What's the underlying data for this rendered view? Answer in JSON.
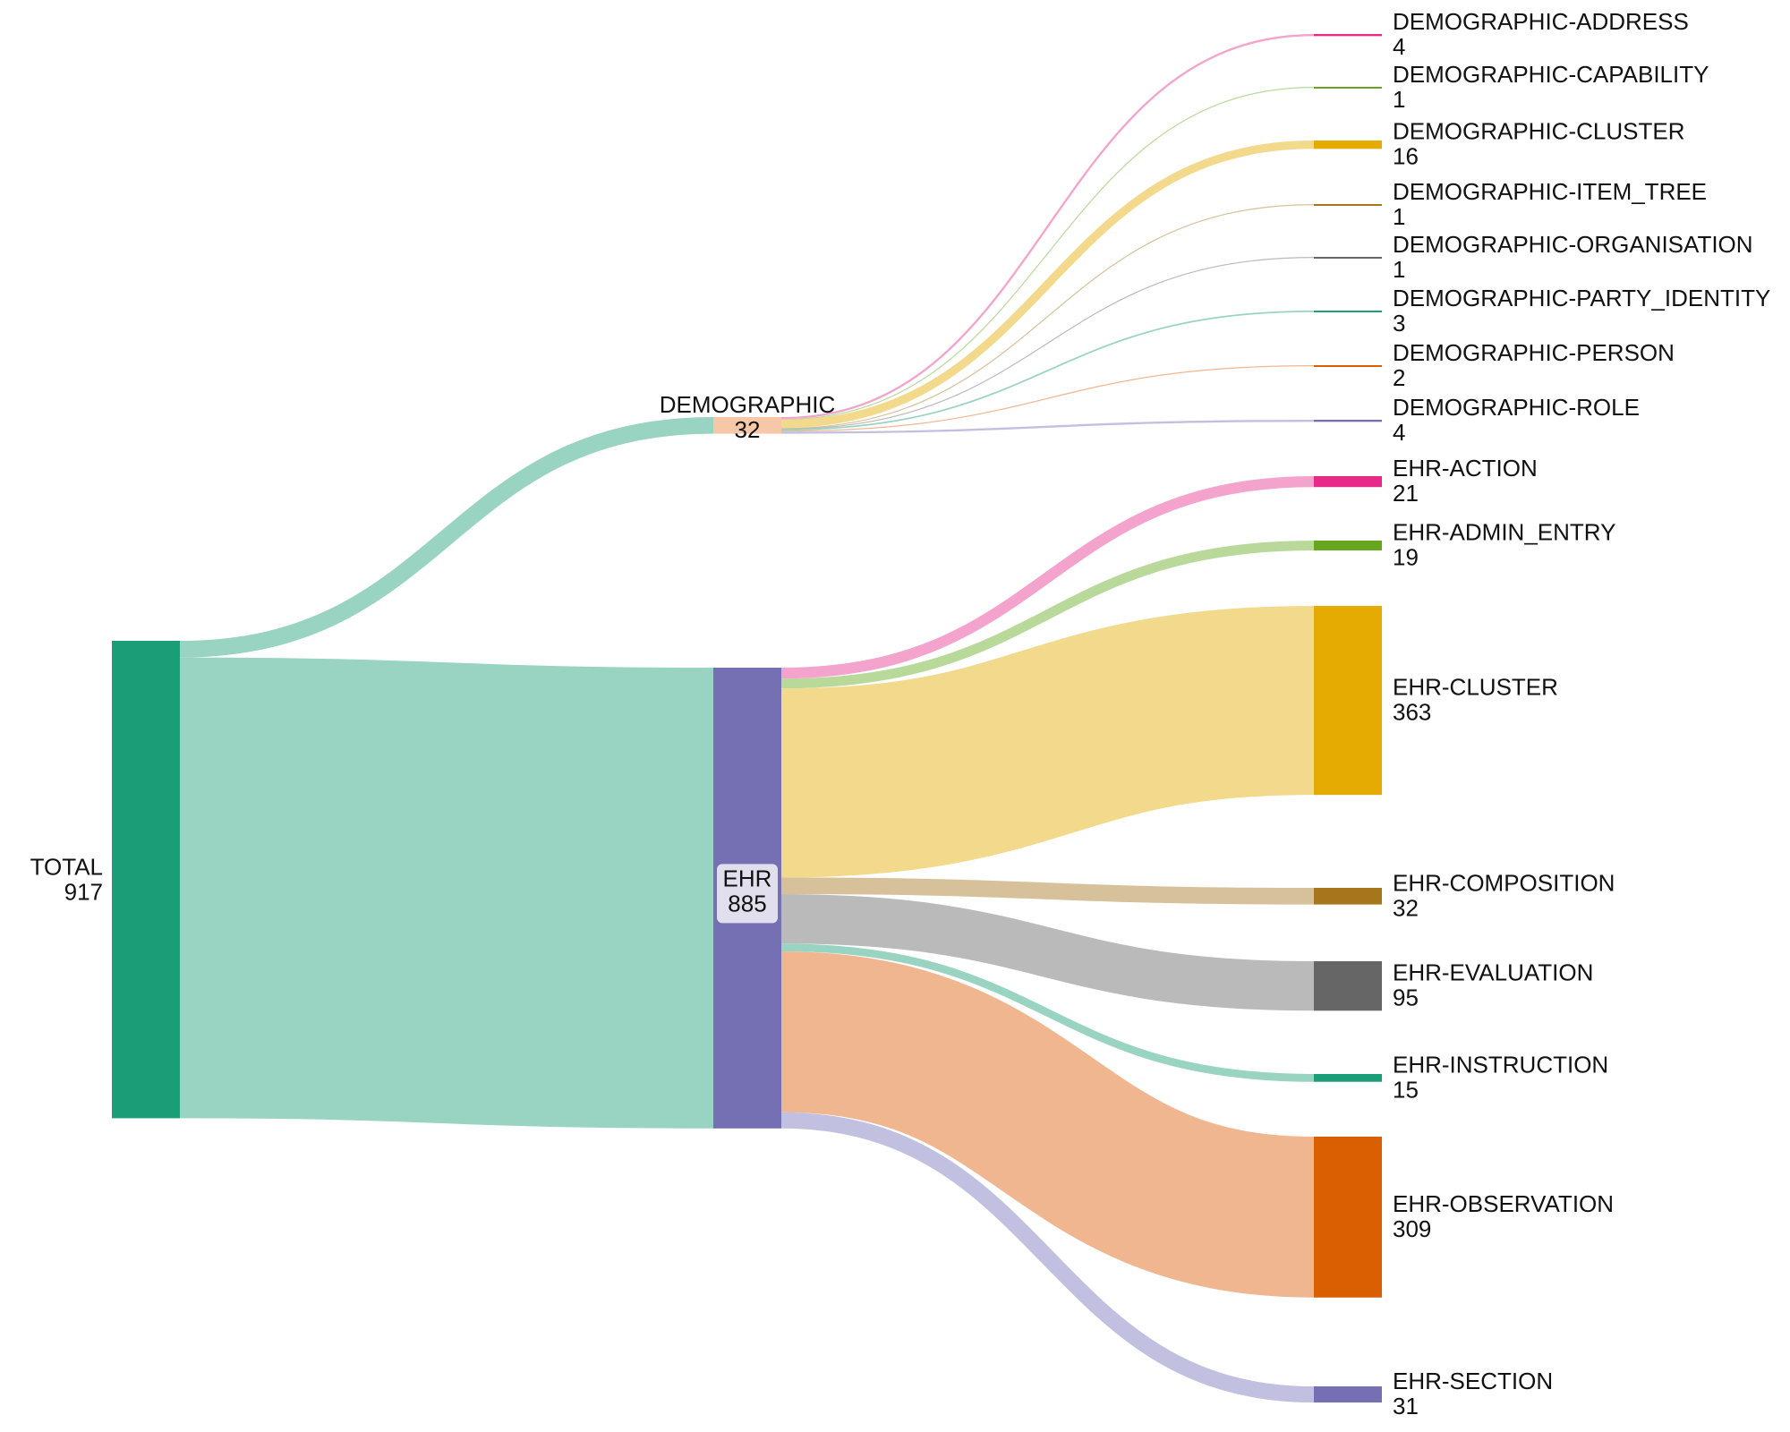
{
  "chart_data": {
    "type": "sankey",
    "nodes": [
      {
        "id": "total",
        "name": "TOTAL",
        "value": 917,
        "color": "#1b9e77"
      },
      {
        "id": "demographic",
        "name": "DEMOGRAPHIC",
        "value": 32,
        "color": "#f7c8a8"
      },
      {
        "id": "ehr",
        "name": "EHR",
        "value": 885,
        "color": "#7570b3"
      },
      {
        "id": "demo-address",
        "name": "DEMOGRAPHIC-ADDRESS",
        "value": 4,
        "color": "#e7298a"
      },
      {
        "id": "demo-capability",
        "name": "DEMOGRAPHIC-CAPABILITY",
        "value": 1,
        "color": "#66a61e"
      },
      {
        "id": "demo-cluster",
        "name": "DEMOGRAPHIC-CLUSTER",
        "value": 16,
        "color": "#e6ab02"
      },
      {
        "id": "demo-item-tree",
        "name": "DEMOGRAPHIC-ITEM_TREE",
        "value": 1,
        "color": "#a6761d"
      },
      {
        "id": "demo-organisation",
        "name": "DEMOGRAPHIC-ORGANISATION",
        "value": 1,
        "color": "#666666"
      },
      {
        "id": "demo-party-identity",
        "name": "DEMOGRAPHIC-PARTY_IDENTITY",
        "value": 3,
        "color": "#1b9e77"
      },
      {
        "id": "demo-person",
        "name": "DEMOGRAPHIC-PERSON",
        "value": 2,
        "color": "#d95f02"
      },
      {
        "id": "demo-role",
        "name": "DEMOGRAPHIC-ROLE",
        "value": 4,
        "color": "#7570b3"
      },
      {
        "id": "ehr-action",
        "name": "EHR-ACTION",
        "value": 21,
        "color": "#e7298a"
      },
      {
        "id": "ehr-admin-entry",
        "name": "EHR-ADMIN_ENTRY",
        "value": 19,
        "color": "#66a61e"
      },
      {
        "id": "ehr-cluster",
        "name": "EHR-CLUSTER",
        "value": 363,
        "color": "#e6ab02"
      },
      {
        "id": "ehr-composition",
        "name": "EHR-COMPOSITION",
        "value": 32,
        "color": "#a6761d"
      },
      {
        "id": "ehr-evaluation",
        "name": "EHR-EVALUATION",
        "value": 95,
        "color": "#666666"
      },
      {
        "id": "ehr-instruction",
        "name": "EHR-INSTRUCTION",
        "value": 15,
        "color": "#1b9e77"
      },
      {
        "id": "ehr-observation",
        "name": "EHR-OBSERVATION",
        "value": 309,
        "color": "#d95f02"
      },
      {
        "id": "ehr-section",
        "name": "EHR-SECTION",
        "value": 31,
        "color": "#7570b3"
      }
    ],
    "links": [
      {
        "source": "total",
        "target": "demographic",
        "value": 32,
        "color": "#99d3c1"
      },
      {
        "source": "total",
        "target": "ehr",
        "value": 885,
        "color": "#99d3c1"
      },
      {
        "source": "demographic",
        "target": "demo-address",
        "value": 4,
        "color": "#f4a3cc"
      },
      {
        "source": "demographic",
        "target": "demo-capability",
        "value": 1,
        "color": "#b9d99a"
      },
      {
        "source": "demographic",
        "target": "demo-cluster",
        "value": 16,
        "color": "#f3d98c"
      },
      {
        "source": "demographic",
        "target": "demo-item-tree",
        "value": 1,
        "color": "#d6c19b"
      },
      {
        "source": "demographic",
        "target": "demo-organisation",
        "value": 1,
        "color": "#bababa"
      },
      {
        "source": "demographic",
        "target": "demo-party-identity",
        "value": 3,
        "color": "#99d3c1"
      },
      {
        "source": "demographic",
        "target": "demo-person",
        "value": 2,
        "color": "#efb690"
      },
      {
        "source": "demographic",
        "target": "demo-role",
        "value": 4,
        "color": "#c2c0e0"
      },
      {
        "source": "ehr",
        "target": "ehr-action",
        "value": 21,
        "color": "#f4a3cc"
      },
      {
        "source": "ehr",
        "target": "ehr-admin-entry",
        "value": 19,
        "color": "#b9d99a"
      },
      {
        "source": "ehr",
        "target": "ehr-cluster",
        "value": 363,
        "color": "#f3d98c"
      },
      {
        "source": "ehr",
        "target": "ehr-composition",
        "value": 32,
        "color": "#d6c19b"
      },
      {
        "source": "ehr",
        "target": "ehr-evaluation",
        "value": 95,
        "color": "#bababa"
      },
      {
        "source": "ehr",
        "target": "ehr-instruction",
        "value": 15,
        "color": "#99d3c1"
      },
      {
        "source": "ehr",
        "target": "ehr-observation",
        "value": 309,
        "color": "#efb690"
      },
      {
        "source": "ehr",
        "target": "ehr-section",
        "value": 31,
        "color": "#c2c0e0"
      }
    ]
  }
}
